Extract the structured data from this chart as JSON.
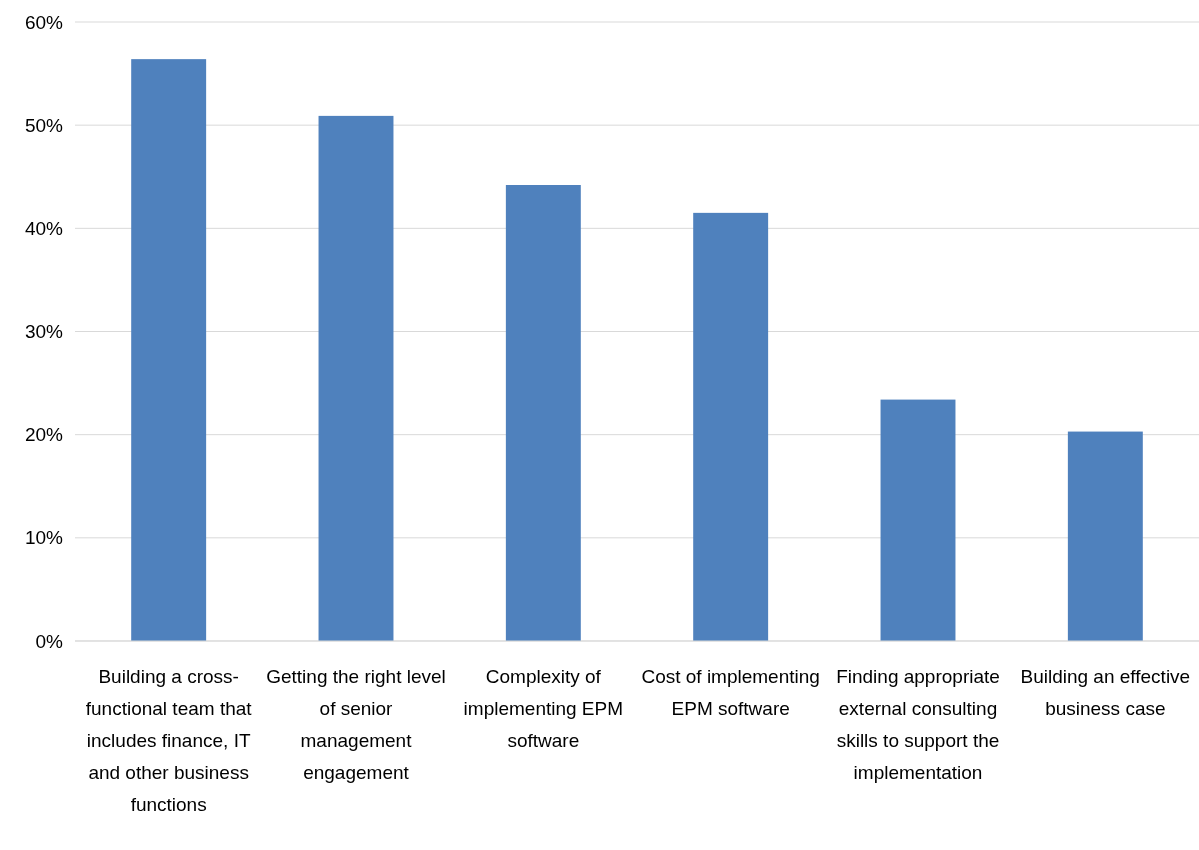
{
  "chart_data": {
    "type": "bar",
    "categories": [
      "Building a cross-functional team that includes finance, IT and other business functions",
      "Getting the right level of senior management engagement",
      "Complexity of implementing EPM software",
      "Cost of implementing EPM software",
      "Finding appropriate external consulting skills to support the implementation",
      "Building an effective business case"
    ],
    "values": [
      56.4,
      50.9,
      44.2,
      41.5,
      23.4,
      20.3
    ],
    "color": "#4f81bd",
    "ylim": [
      0,
      60
    ],
    "yticks": [
      {
        "value": 0,
        "label": "0%"
      },
      {
        "value": 10,
        "label": "10%"
      },
      {
        "value": 20,
        "label": "20%"
      },
      {
        "value": 30,
        "label": "30%"
      },
      {
        "value": 40,
        "label": "40%"
      },
      {
        "value": 50,
        "label": "50%"
      },
      {
        "value": 60,
        "label": "60%"
      }
    ],
    "grid": "y"
  }
}
